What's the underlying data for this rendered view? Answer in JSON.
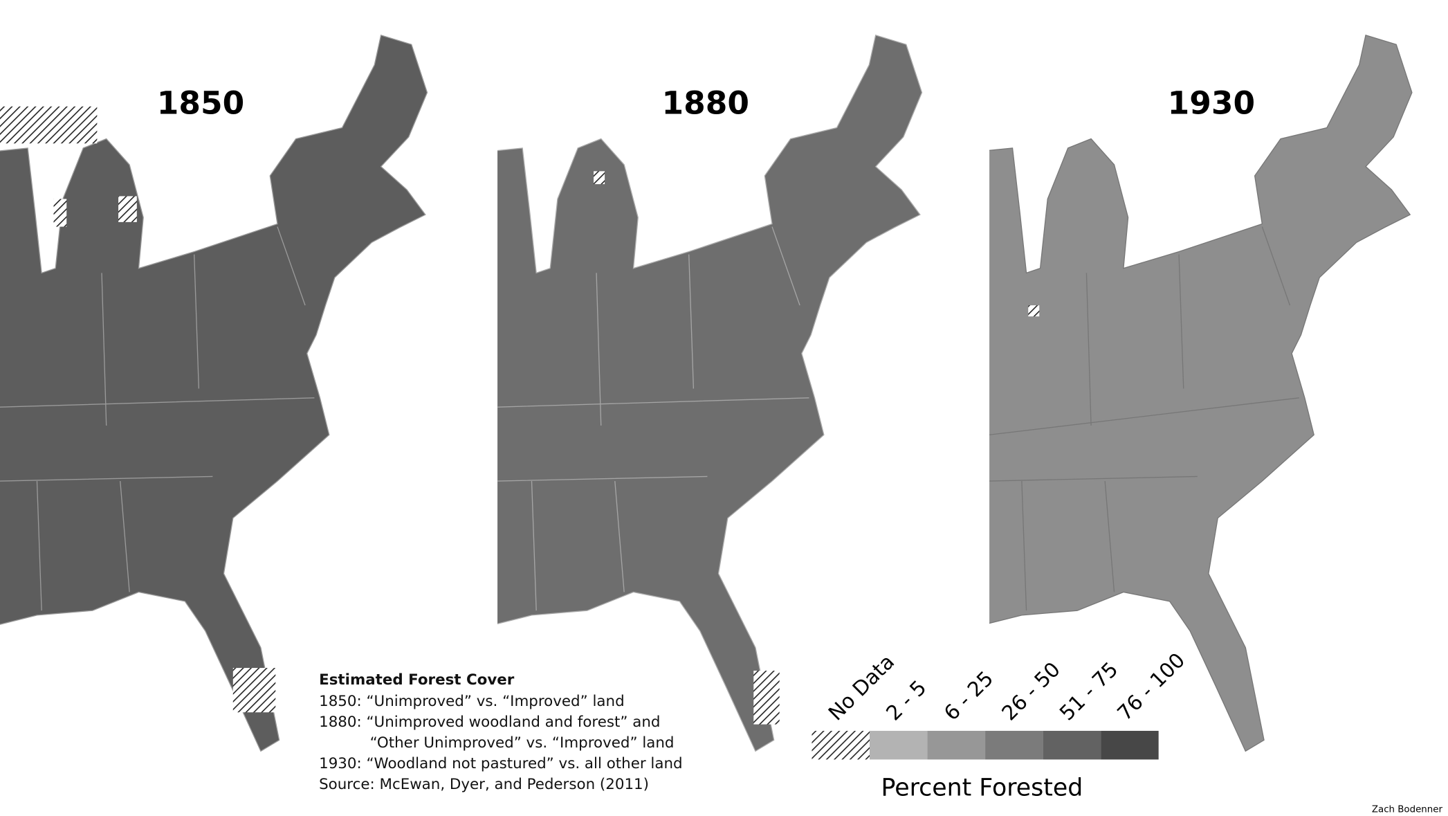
{
  "titles": [
    "1850",
    "1880",
    "1930"
  ],
  "notes": {
    "heading": "Estimated Forest Cover",
    "lines": [
      "1850:  “Unimproved” vs. “Improved” land",
      "1880:  “Unimproved woodland and forest” and",
      "“Other Unimproved” vs. “Improved” land",
      "1930: “Woodland not pastured” vs. all other land",
      "Source:  McEwan, Dyer, and Pederson (2011)"
    ]
  },
  "legend": {
    "title": "Percent Forested",
    "items": [
      {
        "label": "No Data"
      },
      {
        "label": "2 - 5",
        "color": "#b3b3b3"
      },
      {
        "label": "6 - 25",
        "color": "#979797"
      },
      {
        "label": "26 - 50",
        "color": "#7b7b7b"
      },
      {
        "label": "51 - 75",
        "color": "#626262"
      },
      {
        "label": "76 - 100",
        "color": "#474747"
      }
    ]
  },
  "credit": "Zach Bodenner"
}
